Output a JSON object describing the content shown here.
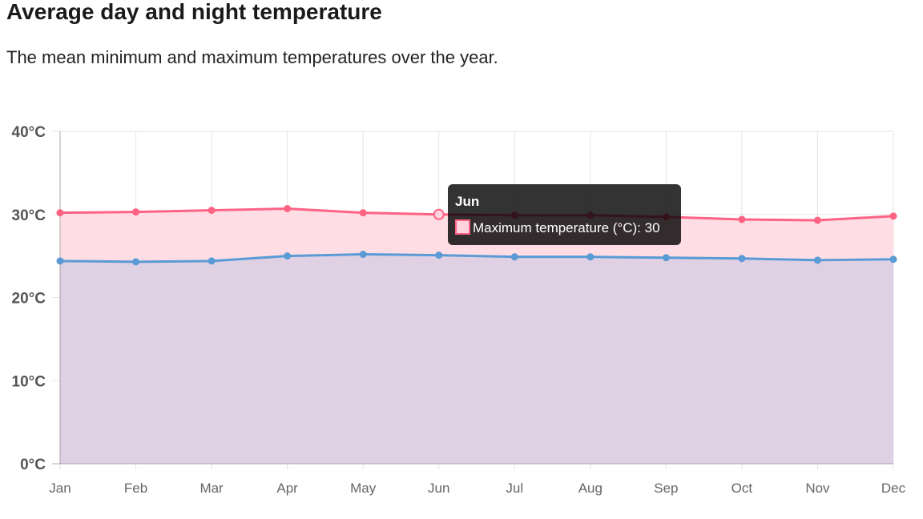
{
  "header": {
    "title": "Average day and night temperature",
    "subtitle": "The mean minimum and maximum temperatures over the year."
  },
  "chart_data": {
    "type": "area",
    "categories": [
      "Jan",
      "Feb",
      "Mar",
      "Apr",
      "May",
      "Jun",
      "Jul",
      "Aug",
      "Sep",
      "Oct",
      "Nov",
      "Dec"
    ],
    "y_ticks": [
      "0°C",
      "10°C",
      "20°C",
      "30°C",
      "40°C"
    ],
    "ylim": [
      0,
      40
    ],
    "grid": true,
    "series": [
      {
        "name": "Maximum temperature (°C)",
        "values": [
          30.2,
          30.3,
          30.5,
          30.7,
          30.2,
          30.0,
          29.9,
          29.9,
          29.7,
          29.4,
          29.3,
          29.8
        ],
        "color": "#ff6384",
        "fill": "#ffdde4"
      },
      {
        "values": [
          24.4,
          24.3,
          24.4,
          25.0,
          25.2,
          25.1,
          24.9,
          24.9,
          24.8,
          24.7,
          24.5,
          24.6
        ],
        "color": "#5a9bd5",
        "fill": "#dfd0e4"
      }
    ],
    "tooltip": {
      "title": "Jun",
      "label": "Maximum temperature (°C): 30",
      "series_index": 0,
      "category_index": 5
    }
  }
}
